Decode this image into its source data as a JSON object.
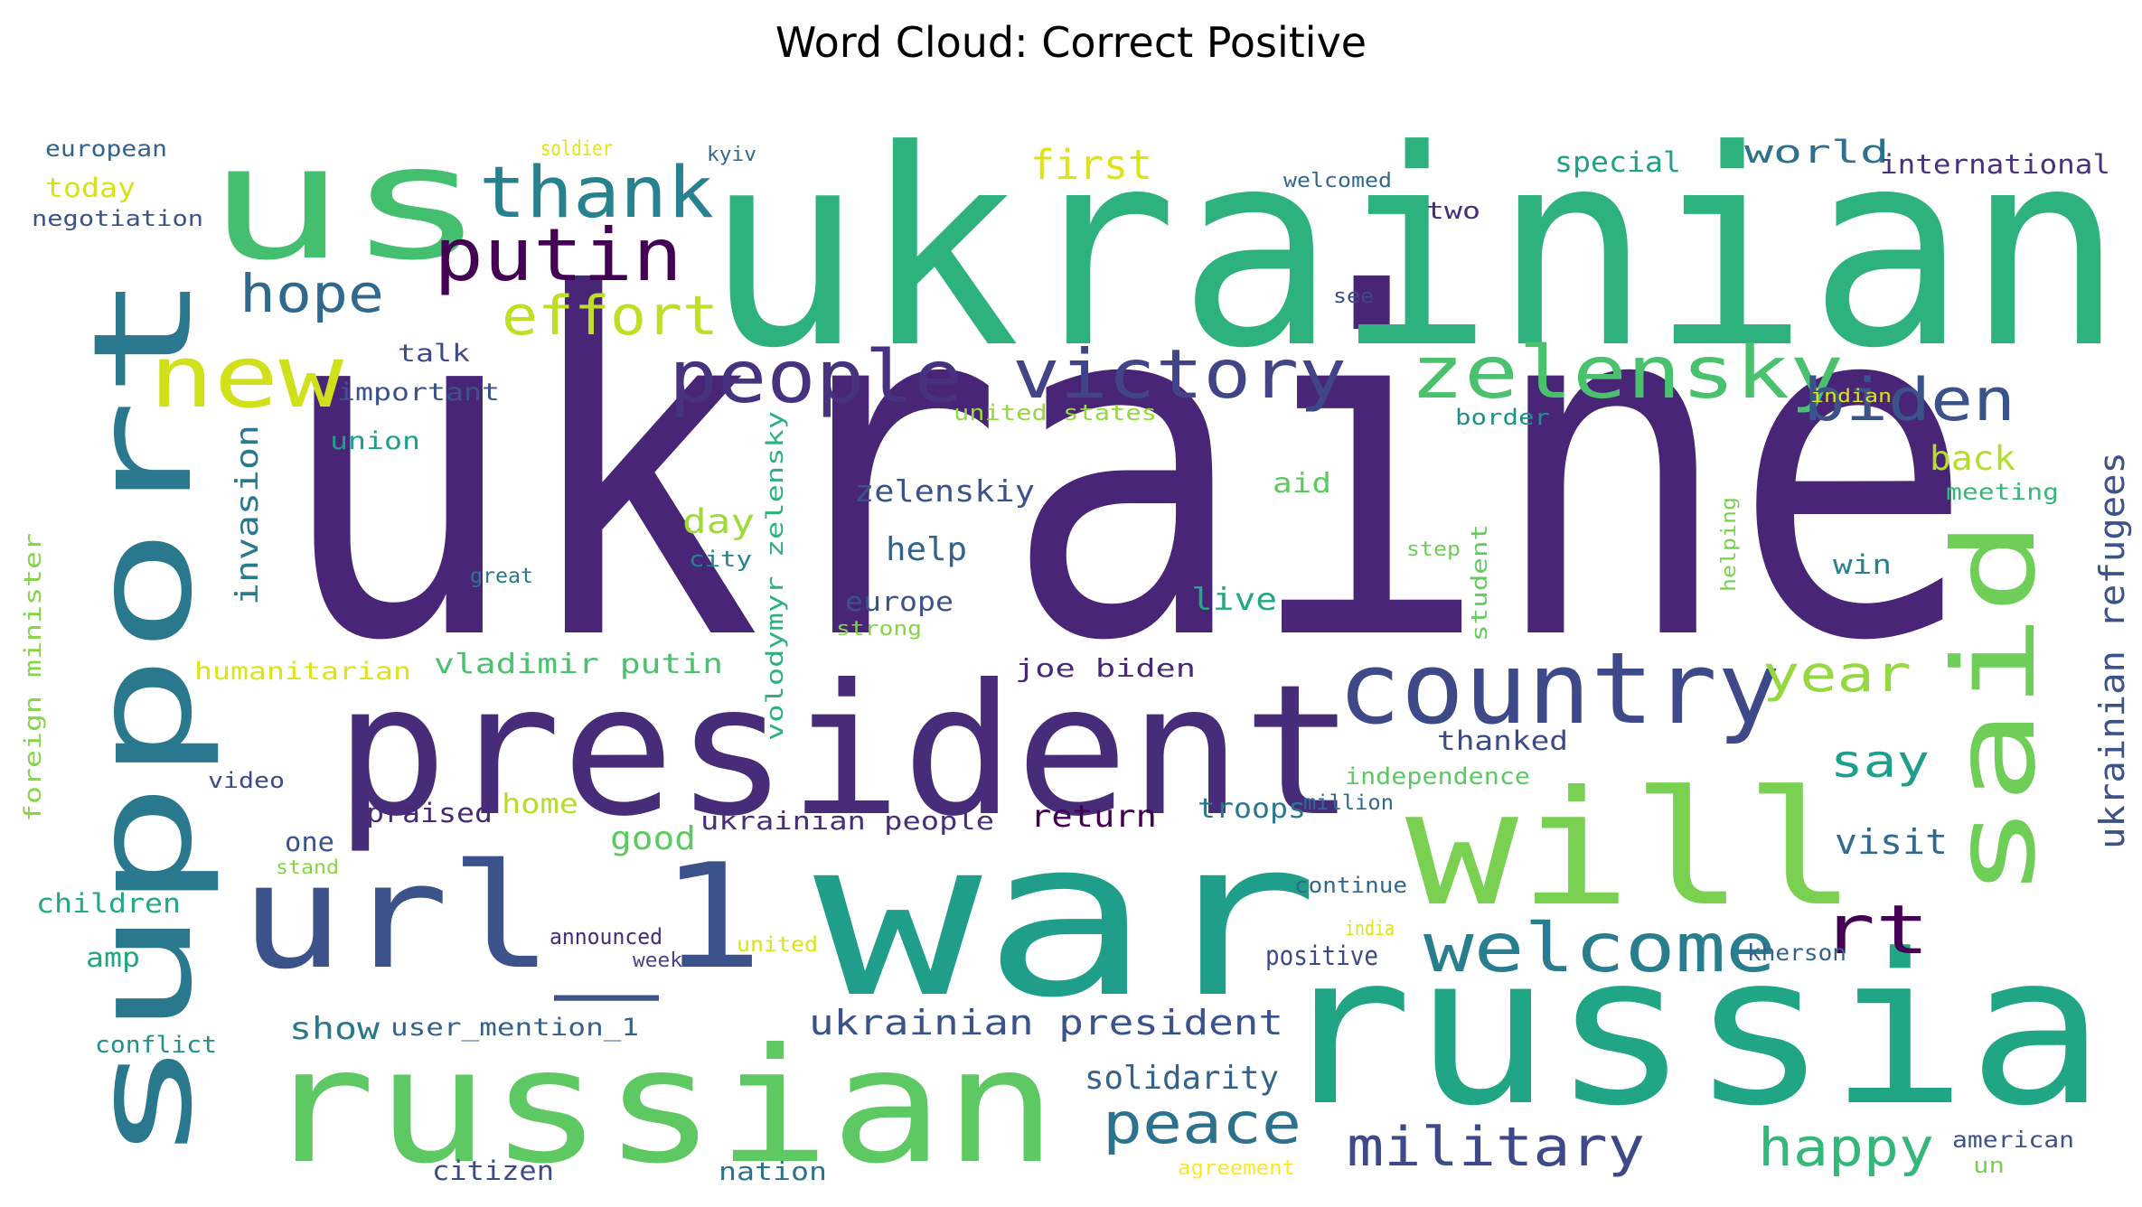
{
  "title": "Word Cloud: Correct Positive",
  "words": [
    {
      "text": "ukraine",
      "color": "#482576"
    },
    {
      "text": "ukrainian",
      "color": "#2db27d"
    },
    {
      "text": "war",
      "color": "#1f9e89"
    },
    {
      "text": "russia",
      "color": "#21a685"
    },
    {
      "text": "president",
      "color": "#472c7a"
    },
    {
      "text": "support",
      "color": "#2a788e"
    },
    {
      "text": "russian",
      "color": "#5ec962"
    },
    {
      "text": "will",
      "color": "#7ad151"
    },
    {
      "text": "us",
      "color": "#44bf70"
    },
    {
      "text": "url_1",
      "color": "#3b528b"
    },
    {
      "text": "said",
      "color": "#6ece58"
    },
    {
      "text": "country",
      "color": "#3e4989"
    },
    {
      "text": "zelensky",
      "color": "#4ac16d"
    },
    {
      "text": "welcome",
      "color": "#287d8e"
    },
    {
      "text": "victory",
      "color": "#414487"
    },
    {
      "text": "people",
      "color": "#46327e"
    },
    {
      "text": "thank",
      "color": "#26828e"
    },
    {
      "text": "new",
      "color": "#d0e11c"
    },
    {
      "text": "putin",
      "color": "#440154"
    },
    {
      "text": "biden",
      "color": "#3b528b"
    },
    {
      "text": "rt",
      "color": "#440154"
    },
    {
      "text": "military",
      "color": "#3e4989"
    },
    {
      "text": "peace",
      "color": "#2c728e"
    },
    {
      "text": "effort",
      "color": "#bddf26"
    },
    {
      "text": "hope",
      "color": "#31688e"
    },
    {
      "text": "happy",
      "color": "#35b779"
    },
    {
      "text": "year",
      "color": "#95d840"
    },
    {
      "text": "say",
      "color": "#1f9e89"
    },
    {
      "text": "first",
      "color": "#dde318"
    },
    {
      "text": "ukrainian president",
      "color": "#3b528b"
    },
    {
      "text": "ukrainian refugees",
      "color": "#3b528b"
    },
    {
      "text": "solidarity",
      "color": "#33638d"
    },
    {
      "text": "back",
      "color": "#b5de2b"
    },
    {
      "text": "visit",
      "color": "#306a8e"
    },
    {
      "text": "return",
      "color": "#440154"
    },
    {
      "text": "invasion",
      "color": "#2a788e"
    },
    {
      "text": "day",
      "color": "#a0da39"
    },
    {
      "text": "help",
      "color": "#33638d"
    },
    {
      "text": "zelenskiy",
      "color": "#3b528b"
    },
    {
      "text": "live",
      "color": "#22a884"
    },
    {
      "text": "good",
      "color": "#5ec962"
    },
    {
      "text": "vladimir putin",
      "color": "#4ac16d"
    },
    {
      "text": "world",
      "color": "#2c728e"
    },
    {
      "text": "special",
      "color": "#1fa187"
    },
    {
      "text": "international",
      "color": "#46327e"
    },
    {
      "text": "show",
      "color": "#2a788e"
    },
    {
      "text": "volodymyr zelensky",
      "color": "#2db27d"
    },
    {
      "text": "joe biden",
      "color": "#482878"
    },
    {
      "text": "europe",
      "color": "#3b528b"
    },
    {
      "text": "troops",
      "color": "#2a788e"
    },
    {
      "text": "ukrainian people",
      "color": "#472d7b"
    },
    {
      "text": "user_mention_1",
      "color": "#33638d"
    },
    {
      "text": "citizen",
      "color": "#3e4989"
    },
    {
      "text": "nation",
      "color": "#2c728e"
    },
    {
      "text": "foreign minister",
      "color": "#86d549"
    },
    {
      "text": "humanitarian",
      "color": "#dde318"
    },
    {
      "text": "important",
      "color": "#3b528b"
    },
    {
      "text": "talk",
      "color": "#3e4989"
    },
    {
      "text": "union",
      "color": "#1f9e89"
    },
    {
      "text": "today",
      "color": "#d8e219"
    },
    {
      "text": "european",
      "color": "#33638d"
    },
    {
      "text": "negotiation",
      "color": "#3b528b"
    },
    {
      "text": "soldier",
      "color": "#e5e419"
    },
    {
      "text": "kyiv",
      "color": "#31688e"
    },
    {
      "text": "welcomed",
      "color": "#31688e"
    },
    {
      "text": "two",
      "color": "#472c7a"
    },
    {
      "text": "see",
      "color": "#3e4989"
    },
    {
      "text": "united states",
      "color": "#95d840"
    },
    {
      "text": "border",
      "color": "#21908d"
    },
    {
      "text": "indian",
      "color": "#dde318"
    },
    {
      "text": "meeting",
      "color": "#35b779"
    },
    {
      "text": "aid",
      "color": "#5ec962"
    },
    {
      "text": "win",
      "color": "#26828e"
    },
    {
      "text": "step",
      "color": "#6ece58"
    },
    {
      "text": "helping",
      "color": "#7ad151"
    },
    {
      "text": "student",
      "color": "#63cb5f"
    },
    {
      "text": "city",
      "color": "#26828e"
    },
    {
      "text": "great",
      "color": "#2a788e"
    },
    {
      "text": "strong",
      "color": "#86d549"
    },
    {
      "text": "thanked",
      "color": "#3e4989"
    },
    {
      "text": "independence",
      "color": "#5ec962"
    },
    {
      "text": "million",
      "color": "#31688e"
    },
    {
      "text": "continue",
      "color": "#31688e"
    },
    {
      "text": "india",
      "color": "#dde318"
    },
    {
      "text": "positive",
      "color": "#3e4989"
    },
    {
      "text": "kherson",
      "color": "#33638d"
    },
    {
      "text": "announced",
      "color": "#482878"
    },
    {
      "text": "week",
      "color": "#414487"
    },
    {
      "text": "united",
      "color": "#dde318"
    },
    {
      "text": "praised",
      "color": "#482878"
    },
    {
      "text": "home",
      "color": "#b5de2b"
    },
    {
      "text": "one",
      "color": "#3b528b"
    },
    {
      "text": "stand",
      "color": "#86d549"
    },
    {
      "text": "children",
      "color": "#22a884"
    },
    {
      "text": "amp",
      "color": "#21a685"
    },
    {
      "text": "video",
      "color": "#3e4989"
    },
    {
      "text": "conflict",
      "color": "#21908d"
    },
    {
      "text": "american",
      "color": "#3b528b"
    },
    {
      "text": "un",
      "color": "#7ad151"
    },
    {
      "text": "agreement",
      "color": "#fde725"
    }
  ]
}
